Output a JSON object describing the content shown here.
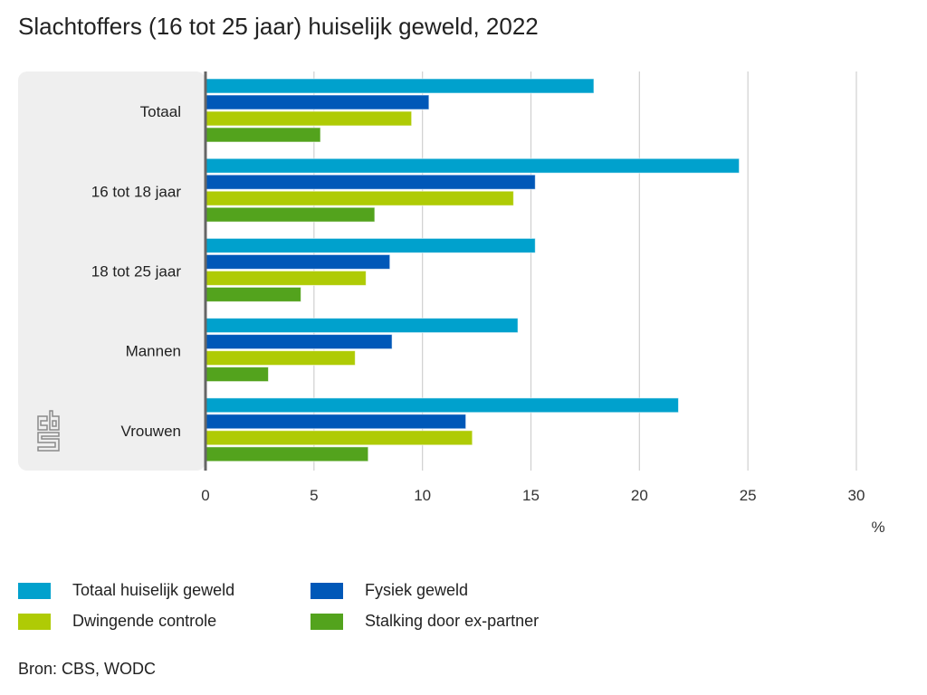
{
  "chart_data": {
    "type": "bar",
    "orientation": "horizontal",
    "title": "Slachtoffers (16 tot 25 jaar) huiselijk geweld, 2022",
    "categories": [
      "Totaal",
      "16 tot 18 jaar",
      "18 tot 25 jaar",
      "Mannen",
      "Vrouwen"
    ],
    "series": [
      {
        "name": "Totaal huiselijk geweld",
        "color": "#00a1cd",
        "values": [
          17.9,
          24.6,
          15.2,
          14.4,
          21.8
        ]
      },
      {
        "name": "Fysiek geweld",
        "color": "#0058b8",
        "values": [
          10.3,
          15.2,
          8.5,
          8.6,
          12.0
        ]
      },
      {
        "name": "Dwingende controle",
        "color": "#afcb05",
        "values": [
          9.5,
          14.2,
          7.4,
          6.9,
          12.3
        ]
      },
      {
        "name": "Stalking door ex-partner",
        "color": "#53a31d",
        "values": [
          5.3,
          7.8,
          4.4,
          2.9,
          7.5
        ]
      }
    ],
    "xlabel": "%",
    "ylabel": "",
    "xlim": [
      0,
      30
    ],
    "xticks": [
      0,
      5,
      10,
      15,
      20,
      25,
      30
    ],
    "grid": true,
    "legend_position": "bottom",
    "source": "Bron: CBS, WODC"
  },
  "logo": "cbs-logo"
}
